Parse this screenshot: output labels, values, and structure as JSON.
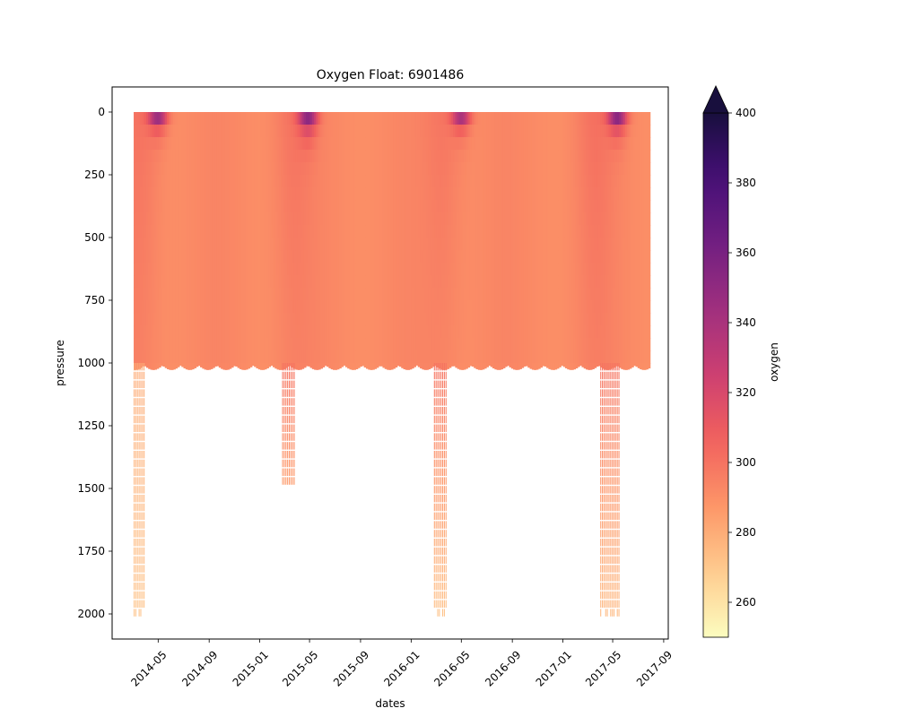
{
  "chart_data": {
    "type": "heatmap",
    "title": "Oxygen Float: 6901486",
    "xlabel": "dates",
    "ylabel": "pressure",
    "colorbar_label": "oxygen",
    "colormap": "magma_r",
    "colorbar_extend": "max",
    "grid": false,
    "xlim": [
      "2014-01-10",
      "2017-09-12"
    ],
    "ylim": [
      2100,
      -100
    ],
    "y_inverted": true,
    "color_range": [
      250,
      400
    ],
    "x_ticks": [
      {
        "date": "2014-05-01",
        "label": "2014-05"
      },
      {
        "date": "2014-09-01",
        "label": "2014-09"
      },
      {
        "date": "2015-01-01",
        "label": "2015-01"
      },
      {
        "date": "2015-05-01",
        "label": "2015-05"
      },
      {
        "date": "2015-09-01",
        "label": "2015-09"
      },
      {
        "date": "2016-01-01",
        "label": "2016-01"
      },
      {
        "date": "2016-05-01",
        "label": "2016-05"
      },
      {
        "date": "2016-09-01",
        "label": "2016-09"
      },
      {
        "date": "2017-01-01",
        "label": "2017-01"
      },
      {
        "date": "2017-05-01",
        "label": "2017-05"
      },
      {
        "date": "2017-09-01",
        "label": "2017-09"
      }
    ],
    "y_ticks": [
      {
        "value": 0,
        "label": "0"
      },
      {
        "value": 250,
        "label": "250"
      },
      {
        "value": 500,
        "label": "500"
      },
      {
        "value": 750,
        "label": "750"
      },
      {
        "value": 1000,
        "label": "1000"
      },
      {
        "value": 1250,
        "label": "1250"
      },
      {
        "value": 1500,
        "label": "1500"
      },
      {
        "value": 1750,
        "label": "1750"
      },
      {
        "value": 2000,
        "label": "2000"
      }
    ],
    "colorbar_ticks": [
      {
        "value": 260,
        "label": "260"
      },
      {
        "value": 280,
        "label": "280"
      },
      {
        "value": 300,
        "label": "300"
      },
      {
        "value": 320,
        "label": "320"
      },
      {
        "value": 340,
        "label": "340"
      },
      {
        "value": 360,
        "label": "360"
      },
      {
        "value": 380,
        "label": "380"
      },
      {
        "value": 400,
        "label": "400"
      }
    ],
    "profile_period": {
      "start": "2014-03-03",
      "end": "2017-07-30",
      "max_pressure_typical": 1000
    },
    "deep_profile_groups": [
      {
        "start": "2014-03-03",
        "end": "2014-03-30",
        "max_pressure": 2000,
        "oxygen_surface": 280,
        "oxygen_bottom": 272
      },
      {
        "start": "2015-02-24",
        "end": "2015-03-28",
        "max_pressure": 1490,
        "oxygen_surface": 300,
        "oxygen_bottom": 285
      },
      {
        "start": "2016-02-25",
        "end": "2016-03-28",
        "max_pressure": 2000,
        "oxygen_surface": 300,
        "oxygen_bottom": 272
      },
      {
        "start": "2017-04-01",
        "end": "2017-05-18",
        "max_pressure": 2000,
        "oxygen_surface": 300,
        "oxygen_bottom": 275
      }
    ],
    "surface_maxima": [
      {
        "date": "2014-04-28",
        "pressure_depth": 40,
        "oxygen": 395
      },
      {
        "date": "2015-04-25",
        "pressure_depth": 50,
        "oxygen": 390
      },
      {
        "date": "2016-04-28",
        "pressure_depth": 40,
        "oxygen": 385
      },
      {
        "date": "2017-05-10",
        "pressure_depth": 45,
        "oxygen": 400
      }
    ],
    "typical_oxygen_range": [
      280,
      305
    ]
  }
}
